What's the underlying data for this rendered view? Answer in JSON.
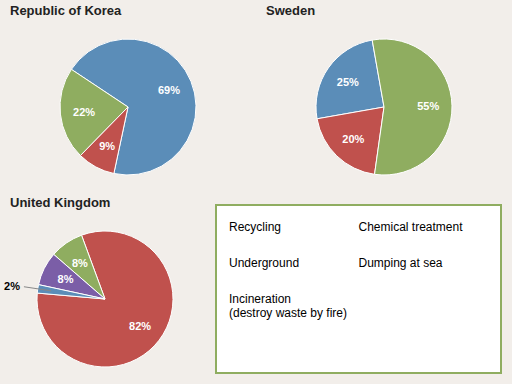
{
  "chart_data": [
    {
      "type": "pie",
      "title": "Republic of Korea",
      "values": [
        69,
        22,
        9
      ],
      "value_labels": [
        "69%",
        "22%",
        "9%"
      ],
      "colors": [
        "#5b8db8",
        "#8fad60",
        "#c0514d"
      ],
      "data_labels": true
    },
    {
      "type": "pie",
      "title": "Sweden",
      "values": [
        25,
        20,
        55
      ],
      "value_labels": [
        "25%",
        "20%",
        "55%"
      ],
      "colors": [
        "#5b8db8",
        "#c0514d",
        "#8fad60"
      ],
      "data_labels": true
    },
    {
      "type": "pie",
      "title": "United Kingdom",
      "values": [
        82,
        8,
        8,
        2
      ],
      "value_labels": [
        "82%",
        "8%",
        "8%",
        "2%"
      ],
      "colors": [
        "#c0514d",
        "#8fad60",
        "#7b5ea7",
        "#5b8db8"
      ],
      "data_labels": true,
      "annotations": [
        "Recycling",
        "Underground",
        "Incineration\n(destroy waste by fire)",
        "Chemical treatment",
        "Dumping at sea"
      ]
    }
  ]
}
